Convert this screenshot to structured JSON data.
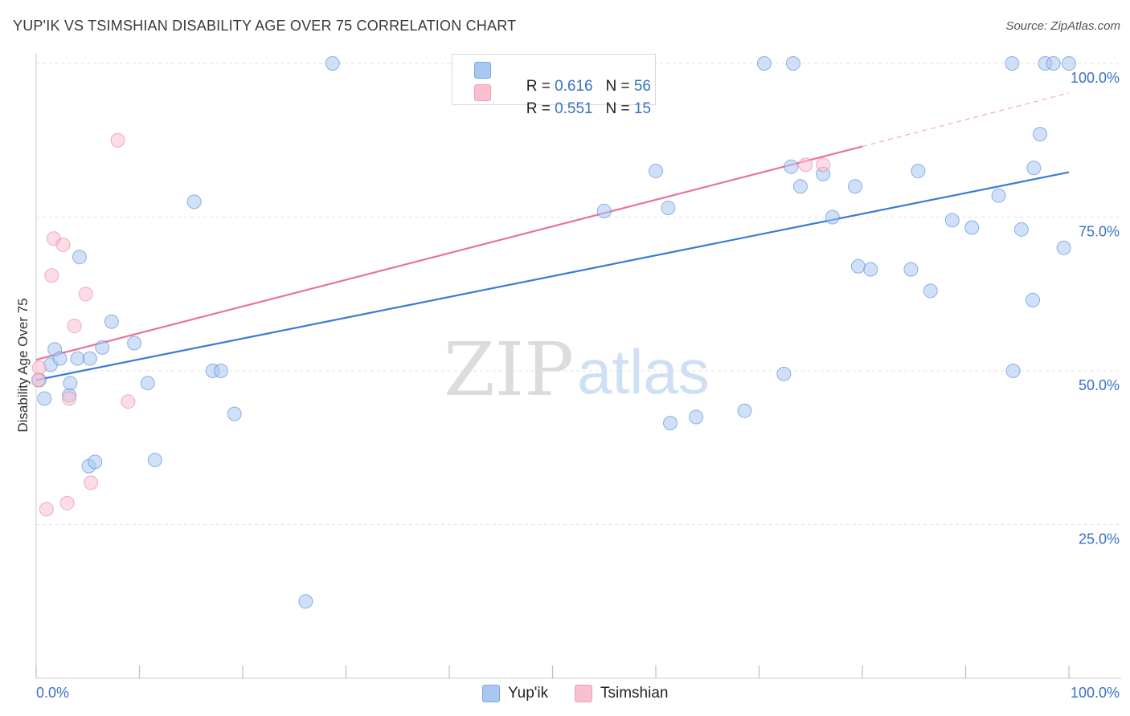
{
  "title": "YUP'IK VS TSIMSHIAN DISABILITY AGE OVER 75 CORRELATION CHART",
  "source": "Source: ZipAtlas.com",
  "watermark": {
    "zip": "ZIP",
    "atlas": "atlas"
  },
  "legend": [
    {
      "r_label": "R = ",
      "r_value": "0.616",
      "n_label": "N = ",
      "n_value": "56",
      "color": "#a9c8f0",
      "border": "#7aa6e0"
    },
    {
      "r_label": "R = ",
      "r_value": "0.551",
      "n_label": "N = ",
      "n_value": "15",
      "color": "#f9c0d0",
      "border": "#f09ab3"
    }
  ],
  "bottom_legend": [
    "Yup'ik",
    "Tsimshian"
  ],
  "chart_data": {
    "type": "scatter",
    "ylabel": "Disability Age Over 75",
    "xlim": [
      0,
      100
    ],
    "ylim": [
      0,
      100
    ],
    "x_tick_labels": [
      "0.0%",
      "100.0%"
    ],
    "y_ticks": [
      25,
      50,
      75,
      100
    ],
    "y_tick_labels": [
      "25.0%",
      "50.0%",
      "75.0%",
      "100.0%"
    ],
    "grid": true,
    "series": [
      {
        "name": "Yup'ik",
        "color": "#3a7bd5",
        "fill": "#a9c8f0",
        "trend": {
          "x0": 0,
          "y0": 48.5,
          "x1": 100,
          "y1": 82.3
        },
        "points": [
          [
            0.3,
            48.5
          ],
          [
            0.8,
            45.5
          ],
          [
            1.4,
            51.0
          ],
          [
            1.8,
            53.5
          ],
          [
            2.3,
            52.0
          ],
          [
            3.2,
            46.0
          ],
          [
            3.3,
            48.0
          ],
          [
            4.0,
            52.0
          ],
          [
            4.2,
            68.5
          ],
          [
            5.2,
            52.0
          ],
          [
            5.1,
            34.5
          ],
          [
            5.7,
            35.2
          ],
          [
            6.4,
            53.8
          ],
          [
            7.3,
            58.0
          ],
          [
            9.5,
            54.5
          ],
          [
            10.8,
            48.0
          ],
          [
            11.5,
            35.5
          ],
          [
            15.3,
            77.5
          ],
          [
            17.1,
            50.0
          ],
          [
            17.9,
            50.0
          ],
          [
            19.2,
            43.0
          ],
          [
            28.7,
            100.0
          ],
          [
            26.1,
            12.5
          ],
          [
            55.0,
            76.0
          ],
          [
            58.5,
            100.0
          ],
          [
            60.0,
            82.5
          ],
          [
            61.4,
            41.5
          ],
          [
            61.2,
            76.5
          ],
          [
            63.9,
            42.5
          ],
          [
            68.6,
            43.5
          ],
          [
            70.5,
            100.0
          ],
          [
            72.4,
            49.5
          ],
          [
            73.3,
            100.0
          ],
          [
            73.1,
            83.2
          ],
          [
            74.0,
            80.0
          ],
          [
            76.2,
            82.0
          ],
          [
            77.1,
            75.0
          ],
          [
            79.3,
            80.0
          ],
          [
            79.6,
            67.0
          ],
          [
            80.8,
            66.5
          ],
          [
            84.7,
            66.5
          ],
          [
            85.4,
            82.5
          ],
          [
            86.6,
            63.0
          ],
          [
            88.7,
            74.5
          ],
          [
            90.6,
            73.3
          ],
          [
            93.2,
            78.5
          ],
          [
            94.5,
            100.0
          ],
          [
            94.6,
            50.0
          ],
          [
            95.4,
            73.0
          ],
          [
            96.5,
            61.5
          ],
          [
            96.6,
            83.0
          ],
          [
            97.2,
            88.5
          ],
          [
            97.7,
            100.0
          ],
          [
            98.5,
            100.0
          ],
          [
            99.5,
            70.0
          ],
          [
            100.0,
            100.0
          ]
        ]
      },
      {
        "name": "Tsimshian",
        "color": "#e8739a",
        "fill": "#f9c0d0",
        "trend": {
          "x0": 0,
          "y0": 51.8,
          "x1": 80,
          "y1": 86.5
        },
        "trend_ext": {
          "x0": 80,
          "y0": 86.5,
          "x1": 100,
          "y1": 95.2
        },
        "points": [
          [
            0.3,
            50.5
          ],
          [
            1.0,
            27.5
          ],
          [
            1.5,
            65.5
          ],
          [
            1.7,
            71.5
          ],
          [
            2.6,
            70.5
          ],
          [
            3.0,
            28.5
          ],
          [
            3.2,
            45.5
          ],
          [
            3.7,
            57.3
          ],
          [
            4.8,
            62.5
          ],
          [
            5.3,
            31.8
          ],
          [
            7.9,
            87.5
          ],
          [
            8.9,
            45.0
          ],
          [
            74.5,
            83.5
          ],
          [
            76.2,
            83.5
          ],
          [
            0.2,
            48.5
          ]
        ]
      }
    ]
  }
}
